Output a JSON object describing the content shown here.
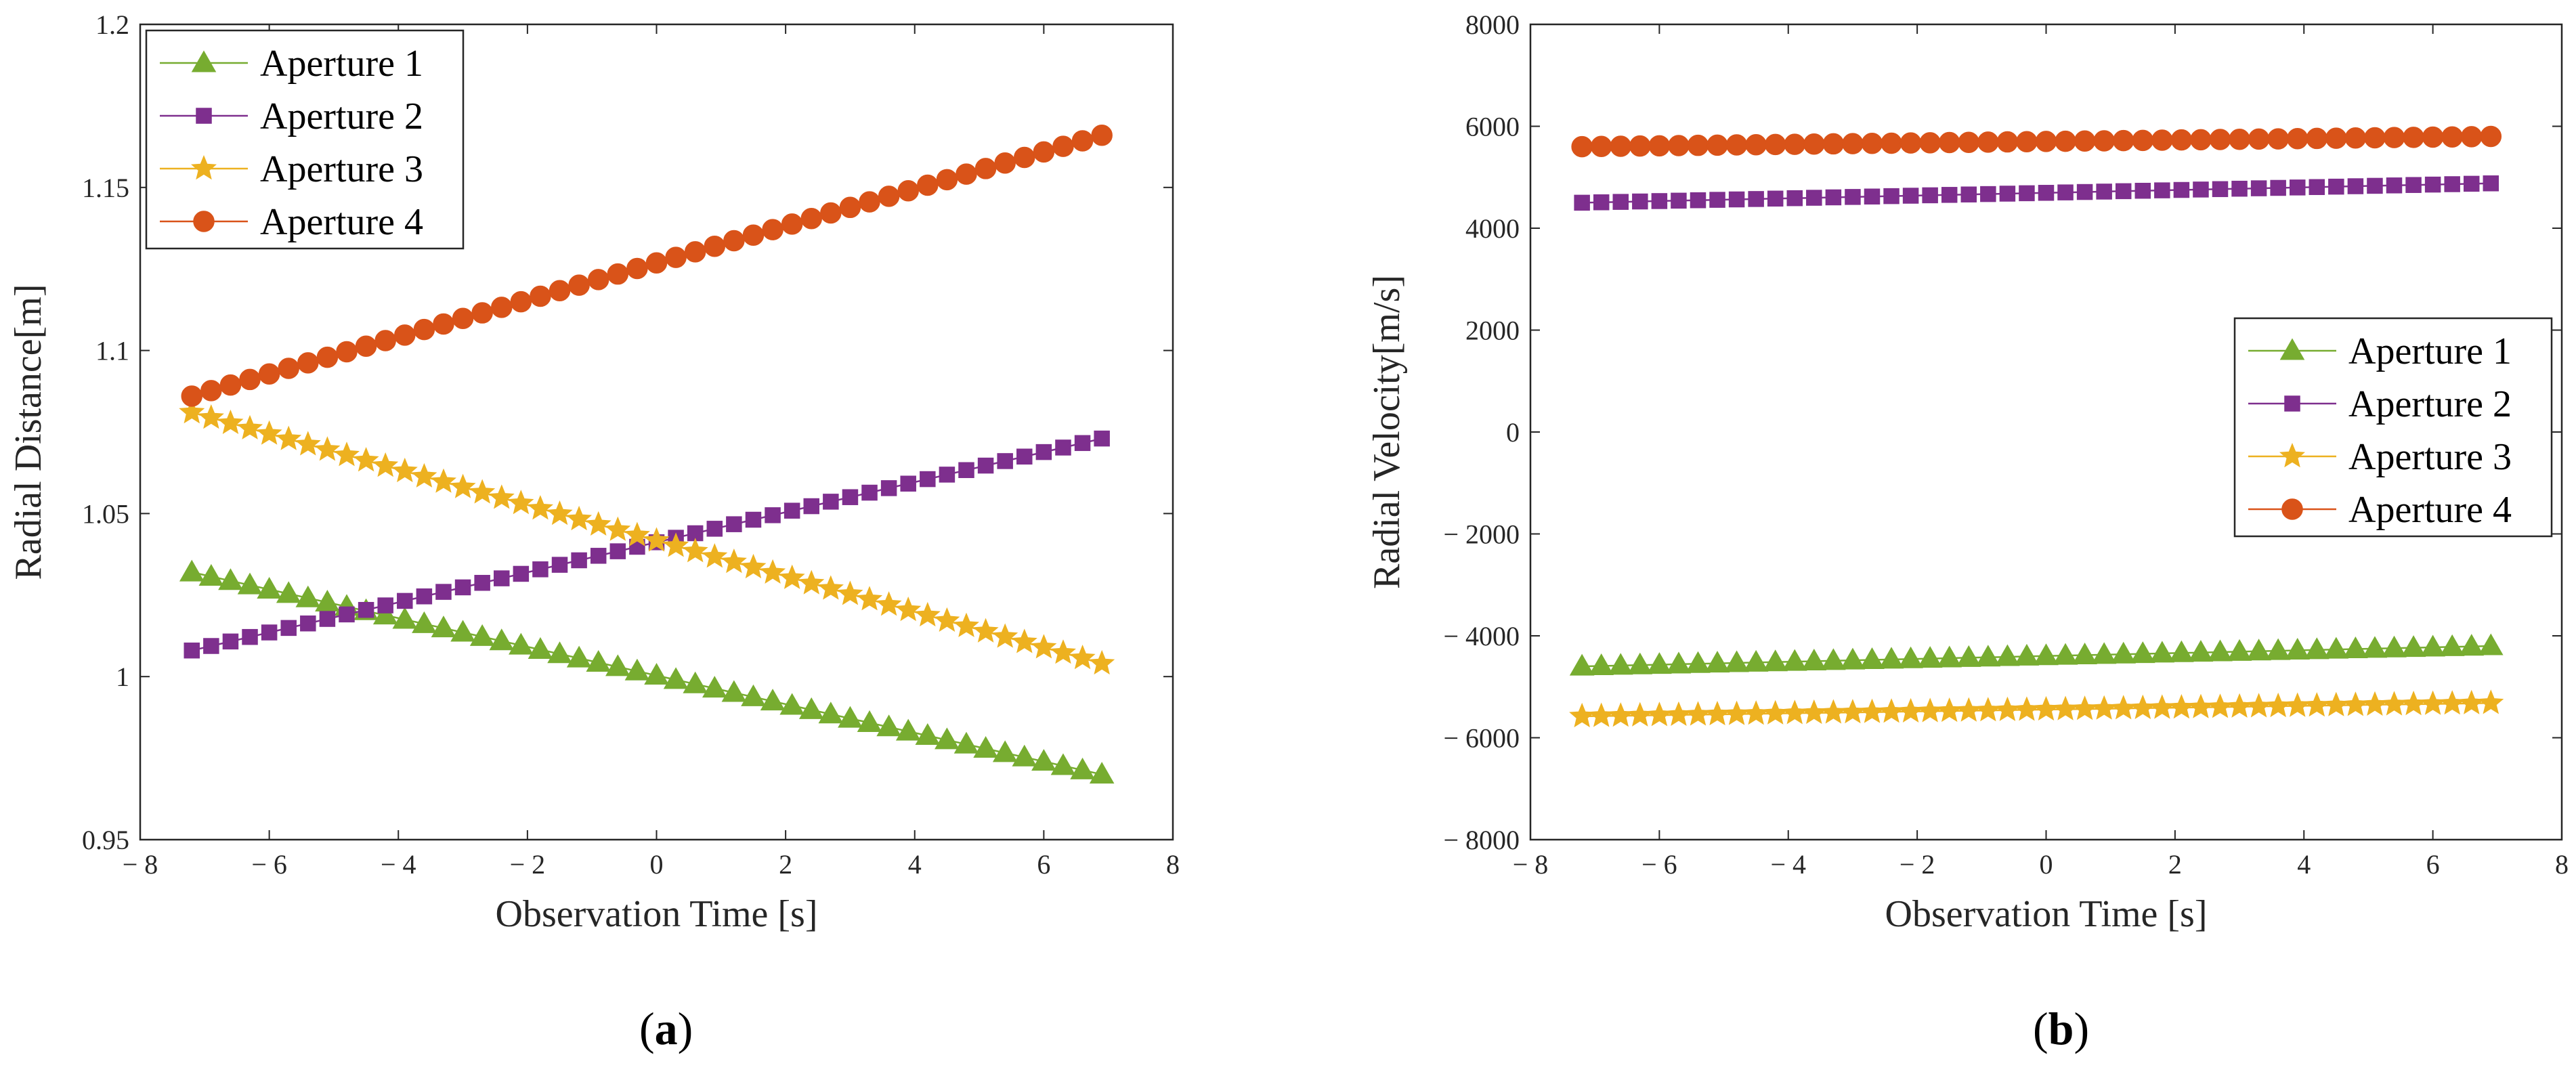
{
  "colors": {
    "aperture1": "#77AC30",
    "aperture2": "#7E2F8E",
    "aperture3": "#EDB120",
    "aperture4": "#D95319",
    "axis": "#262626"
  },
  "chart_data": [
    {
      "type": "line",
      "panel_label": {
        "open": "(",
        "letter": "a",
        "close": ")"
      },
      "xlabel": "Observation Time [s]",
      "ylabel": "Radial Distance[m]",
      "xlim": [
        -8,
        8
      ],
      "ylim": [
        0.95,
        1.2
      ],
      "xticks": [
        -8,
        -6,
        -4,
        -2,
        0,
        2,
        4,
        6,
        8
      ],
      "xtick_labels": [
        "− 8",
        "− 6",
        "− 4",
        "− 2",
        "0",
        "2",
        "4",
        "6",
        "8"
      ],
      "yticks": [
        0.95,
        1,
        1.05,
        1.1,
        1.15,
        1.2
      ],
      "ytick_labels": [
        "0.95",
        "1",
        "1.05",
        "1.1",
        "1.15",
        "1.2"
      ],
      "grid": false,
      "legend_position": "top-left",
      "x_range": {
        "start": -7.2,
        "end": 6.9,
        "count": 48
      },
      "series": [
        {
          "name": "Aperture 1",
          "marker": "triangle",
          "color_key": "aperture1",
          "y_start": 1.032,
          "y_end": 0.97
        },
        {
          "name": "Aperture 2",
          "marker": "square",
          "color_key": "aperture2",
          "y_start": 1.008,
          "y_end": 1.073
        },
        {
          "name": "Aperture 3",
          "marker": "star",
          "color_key": "aperture3",
          "y_start": 1.081,
          "y_end": 1.004
        },
        {
          "name": "Aperture 4",
          "marker": "circle",
          "color_key": "aperture4",
          "y_start": 1.086,
          "y_end": 1.166
        }
      ]
    },
    {
      "type": "line",
      "panel_label": {
        "open": "(",
        "letter": "b",
        "close": ")"
      },
      "xlabel": "Observation Time [s]",
      "ylabel": "Radial Velocity[m/s]",
      "xlim": [
        -8,
        8
      ],
      "ylim": [
        -8000,
        8000
      ],
      "xticks": [
        -8,
        -6,
        -4,
        -2,
        0,
        2,
        4,
        6,
        8
      ],
      "xtick_labels": [
        "− 8",
        "− 6",
        "− 4",
        "− 2",
        "0",
        "2",
        "4",
        "6",
        "8"
      ],
      "yticks": [
        -8000,
        -6000,
        -4000,
        -2000,
        0,
        2000,
        4000,
        6000,
        8000
      ],
      "ytick_labels": [
        "− 8000",
        "− 6000",
        "− 4000",
        "− 2000",
        "0",
        "2000",
        "4000",
        "6000",
        "8000"
      ],
      "grid": false,
      "legend_position": "right",
      "x_range": {
        "start": -7.2,
        "end": 6.9,
        "count": 48
      },
      "series": [
        {
          "name": "Aperture 1",
          "marker": "triangle",
          "color_key": "aperture1",
          "y_start": -4600,
          "y_end": -4200
        },
        {
          "name": "Aperture 2",
          "marker": "square",
          "color_key": "aperture2",
          "y_start": 4500,
          "y_end": 4880
        },
        {
          "name": "Aperture 3",
          "marker": "star",
          "color_key": "aperture3",
          "y_start": -5580,
          "y_end": -5320
        },
        {
          "name": "Aperture 4",
          "marker": "circle",
          "color_key": "aperture4",
          "y_start": 5600,
          "y_end": 5800
        }
      ]
    }
  ]
}
